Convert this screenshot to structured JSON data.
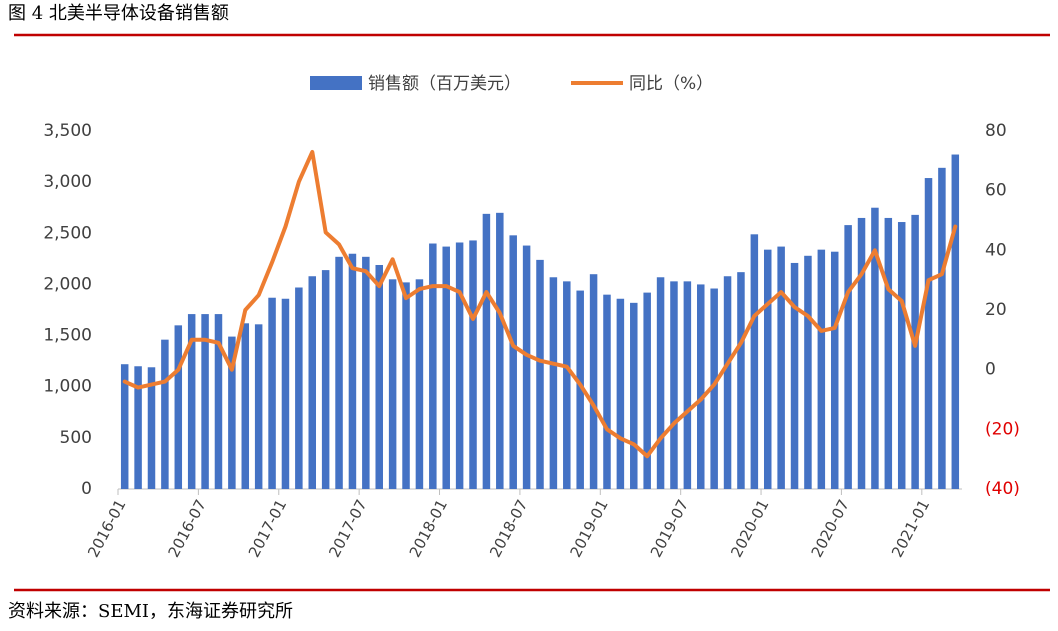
{
  "header": {
    "title": "图 4 北美半导体设备销售额"
  },
  "chart_data": {
    "type": "bar",
    "categories": [
      "2016-01",
      null,
      null,
      null,
      null,
      null,
      "2016-07",
      null,
      null,
      null,
      null,
      null,
      "2017-01",
      null,
      null,
      null,
      null,
      null,
      "2017-07",
      null,
      null,
      null,
      null,
      null,
      "2018-01",
      null,
      null,
      null,
      null,
      null,
      "2018-07",
      null,
      null,
      null,
      null,
      null,
      "2019-01",
      null,
      null,
      null,
      null,
      null,
      "2019-07",
      null,
      null,
      null,
      null,
      null,
      "2020-01",
      null,
      null,
      null,
      null,
      null,
      "2020-07",
      null,
      null,
      null,
      null,
      null,
      "2021-01",
      null,
      null
    ],
    "series": [
      {
        "name": "销售额（百万美元）",
        "type": "bar",
        "color": "#4472c4",
        "values": [
          1220,
          1200,
          1190,
          1460,
          1600,
          1710,
          1710,
          1710,
          1490,
          1620,
          1610,
          1870,
          1860,
          1970,
          2080,
          2140,
          2270,
          2300,
          2270,
          2190,
          2050,
          2020,
          2050,
          2400,
          2370,
          2410,
          2430,
          2690,
          2700,
          2480,
          2380,
          2240,
          2070,
          2030,
          1940,
          2100,
          1900,
          1860,
          1820,
          1920,
          2070,
          2030,
          2030,
          2000,
          1960,
          2080,
          2120,
          2490,
          2340,
          2370,
          2210,
          2280,
          2340,
          2320,
          2580,
          2650,
          2750,
          2650,
          2610,
          2680,
          3040,
          3140,
          3270
        ]
      },
      {
        "name": "同比（%）",
        "type": "line",
        "axis": "y2",
        "color": "#ed7d31",
        "values": [
          -4,
          -6,
          -5,
          -4,
          0,
          10,
          10,
          9,
          0,
          20,
          25,
          36,
          48,
          63,
          73,
          46,
          42,
          34,
          33,
          28,
          37,
          24,
          27,
          28,
          28,
          26,
          17,
          26,
          19,
          8,
          5,
          3,
          2,
          1,
          -5,
          -12,
          -20,
          -23,
          -25,
          -29,
          -23,
          -18,
          -14,
          -10,
          -5,
          2,
          9,
          18,
          22,
          26,
          21,
          18,
          13,
          14,
          26,
          32,
          40,
          27,
          23,
          8,
          30,
          32,
          48
        ]
      }
    ],
    "ylim": [
      0,
      3500
    ],
    "yticks": [
      0,
      {
        "value": 500,
        "label": "500"
      },
      {
        "value": 1000,
        "label": "1,000"
      },
      {
        "value": 1500,
        "label": "1,500"
      },
      {
        "value": 2000,
        "label": "2,000"
      },
      {
        "value": 2500,
        "label": "2,500"
      },
      {
        "value": 3000,
        "label": "3,000"
      },
      {
        "value": 3500,
        "label": "3,500"
      }
    ],
    "y2lim": [
      -40,
      80
    ],
    "y2ticks": [
      {
        "value": -40,
        "label": "(40)"
      },
      {
        "value": -20,
        "label": "(20)"
      },
      0,
      20,
      40,
      60,
      80
    ],
    "y2_negative_color": "#e00000",
    "legend": "top",
    "grid": false
  },
  "source": "资料来源：SEMI，东海证券研究所"
}
